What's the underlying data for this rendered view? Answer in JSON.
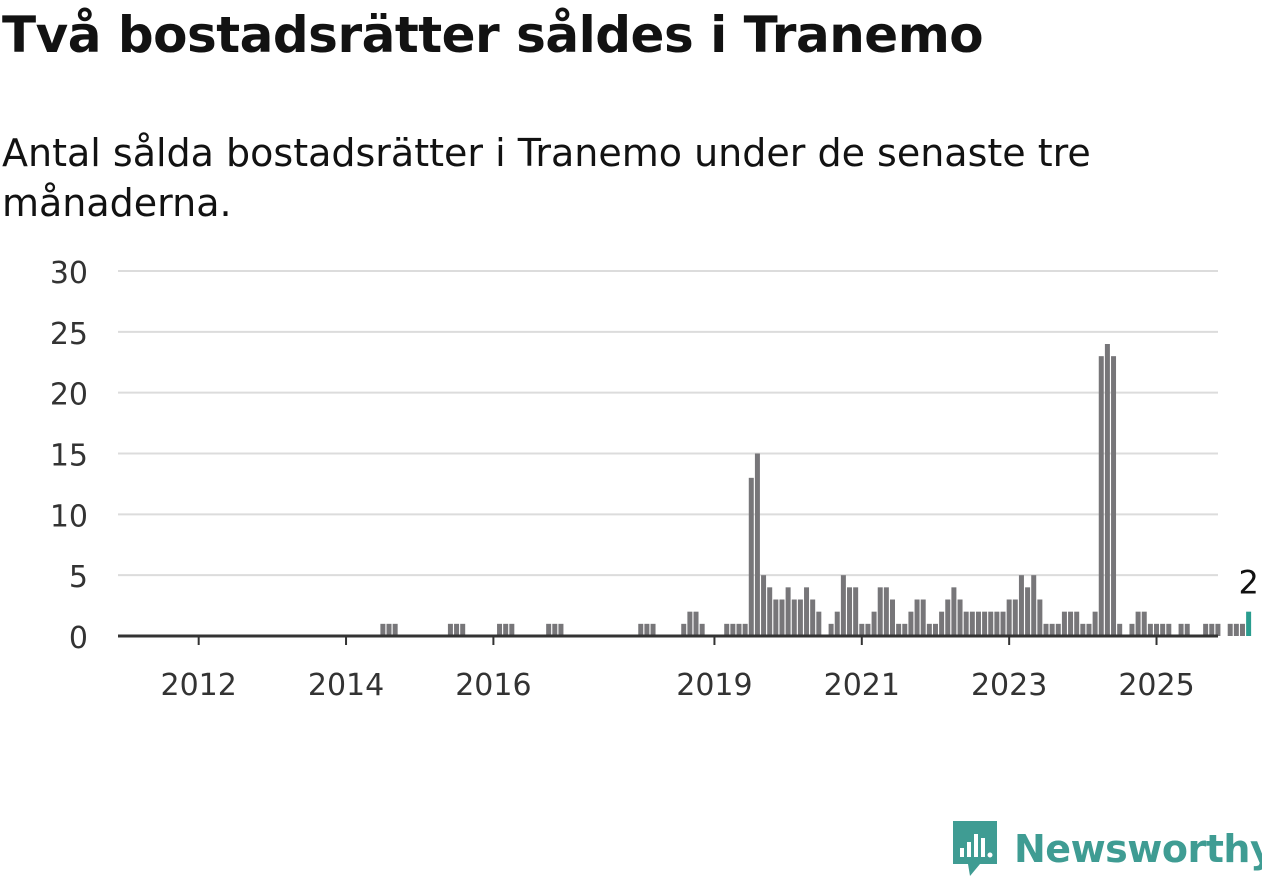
{
  "header": {
    "title": "Två bostadsrätter såldes i Tranemo",
    "subtitle": "Antal sålda bostadsrätter i Tranemo under de senaste tre månaderna."
  },
  "brand": {
    "name": "Newsworthy",
    "icon": "newsworthy-logo-icon",
    "color": "#3f9c93"
  },
  "chart_data": {
    "type": "bar",
    "title": "Två bostadsrätter såldes i Tranemo",
    "subtitle": "Antal sålda bostadsrätter i Tranemo under de senaste tre månaderna.",
    "xlabel": "",
    "ylabel": "",
    "x_unit": "month",
    "x_start": "2011-01",
    "ylim": [
      0,
      30
    ],
    "yticks": [
      0,
      5,
      10,
      15,
      20,
      25,
      30
    ],
    "xticks": [
      {
        "label": "2012",
        "date": "2012-01"
      },
      {
        "label": "2014",
        "date": "2014-01"
      },
      {
        "label": "2016",
        "date": "2016-01"
      },
      {
        "label": "2019",
        "date": "2019-01"
      },
      {
        "label": "2021",
        "date": "2021-01"
      },
      {
        "label": "2023",
        "date": "2023-01"
      },
      {
        "label": "2025",
        "date": "2025-01"
      }
    ],
    "grid": true,
    "bar_color": "#777679",
    "highlight_color": "#2a9d8f",
    "highlight_label": "2",
    "values": [
      0,
      0,
      0,
      0,
      0,
      0,
      0,
      0,
      0,
      0,
      0,
      0,
      0,
      0,
      0,
      0,
      0,
      0,
      0,
      0,
      0,
      0,
      0,
      0,
      0,
      0,
      0,
      0,
      0,
      0,
      0,
      0,
      0,
      0,
      0,
      0,
      0,
      0,
      0,
      0,
      0,
      0,
      1,
      1,
      1,
      0,
      0,
      0,
      0,
      0,
      0,
      0,
      0,
      1,
      1,
      1,
      0,
      0,
      0,
      0,
      0,
      1,
      1,
      1,
      0,
      0,
      0,
      0,
      0,
      1,
      1,
      1,
      0,
      0,
      0,
      0,
      0,
      0,
      0,
      0,
      0,
      0,
      0,
      0,
      1,
      1,
      1,
      0,
      0,
      0,
      0,
      1,
      2,
      2,
      1,
      0,
      0,
      0,
      1,
      1,
      1,
      1,
      13,
      15,
      5,
      4,
      3,
      3,
      4,
      3,
      3,
      4,
      3,
      2,
      0,
      1,
      2,
      5,
      4,
      4,
      1,
      1,
      2,
      4,
      4,
      3,
      1,
      1,
      2,
      3,
      3,
      1,
      1,
      2,
      3,
      4,
      3,
      2,
      2,
      2,
      2,
      2,
      2,
      2,
      3,
      3,
      5,
      4,
      5,
      3,
      1,
      1,
      1,
      2,
      2,
      2,
      1,
      1,
      2,
      23,
      24,
      23,
      1,
      0,
      1,
      2,
      2,
      1,
      1,
      1,
      1,
      0,
      1,
      1,
      0,
      0,
      1,
      1,
      1,
      0,
      1,
      1,
      1,
      2
    ]
  }
}
